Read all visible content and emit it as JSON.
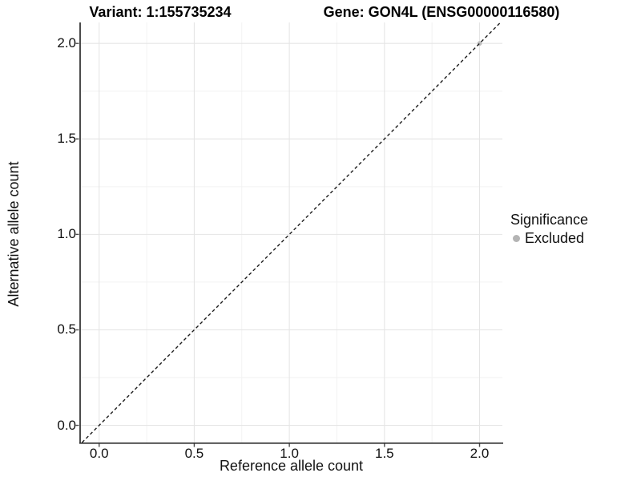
{
  "titles": {
    "variant": "Variant: 1:155735234",
    "gene": "Gene: GON4L (ENSG00000116580)"
  },
  "axes": {
    "x": {
      "label": "Reference allele count",
      "tick_labels": [
        "0.0",
        "0.5",
        "1.0",
        "1.5",
        "2.0"
      ]
    },
    "y": {
      "label": "Alternative allele count",
      "tick_labels": [
        "0.0",
        "0.5",
        "1.0",
        "1.5",
        "2.0"
      ]
    }
  },
  "legend": {
    "title": "Significance",
    "items": [
      {
        "label": "Excluded",
        "color": "#b4b4b4"
      }
    ]
  },
  "colors": {
    "grid_major": "#e5e5e5",
    "grid_minor": "#f2f2f2",
    "axis_line": "#2d2d2d",
    "tick_mark": "#4a4a4a",
    "reference_line": "#1c1c1c",
    "point": "#bdbdbd",
    "background": "#ffffff"
  },
  "chart_data": {
    "type": "scatter",
    "title": "Variant: 1:155735234 | Gene: GON4L (ENSG00000116580)",
    "xlabel": "Reference allele count",
    "ylabel": "Alternative allele count",
    "xlim": [
      -0.1,
      2.12
    ],
    "ylim": [
      -0.09,
      2.11
    ],
    "x_ticks": [
      0.0,
      0.5,
      1.0,
      1.5,
      2.0
    ],
    "y_ticks": [
      0.0,
      0.5,
      1.0,
      1.5,
      2.0
    ],
    "x_minor_ticks": [
      0.25,
      0.75,
      1.25,
      1.75
    ],
    "y_minor_ticks": [
      0.25,
      0.75,
      1.25,
      1.75
    ],
    "grid": true,
    "legend_position": "right",
    "legend_title": "Significance",
    "reference_line": {
      "type": "identity",
      "slope": 1,
      "intercept": 0,
      "style": "dashed"
    },
    "series": [
      {
        "name": "Excluded",
        "color": "#bdbdbd",
        "points": [
          {
            "x": 2.0,
            "y": 2.0
          }
        ]
      }
    ]
  }
}
